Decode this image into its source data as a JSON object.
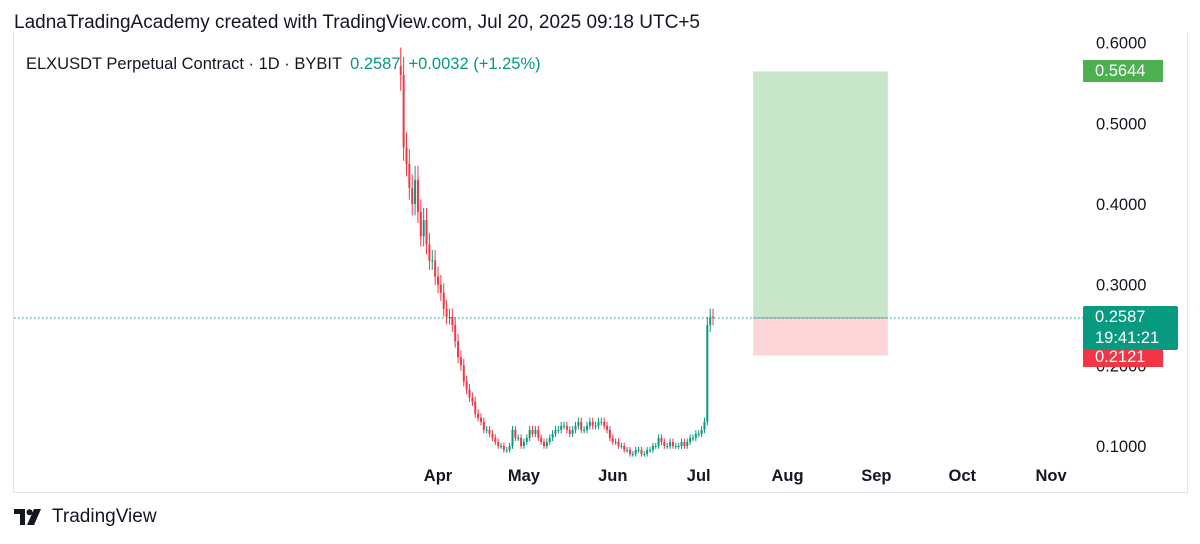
{
  "header": {
    "attribution": "LadnaTradingAcademy created with TradingView.com, Jul 20, 2025 09:18 UTC+5"
  },
  "legend": {
    "symbol": "ELXUSDT Perpetual Contract · 1D · BYBIT",
    "last": "0.2587",
    "change": "+0.0032 (+1.25%)"
  },
  "price_tags": {
    "take_profit": "0.5644",
    "last_price": "0.2587",
    "countdown": "19:41:21",
    "stop_loss": "0.2121"
  },
  "footer": {
    "brand": "TradingView"
  },
  "colors": {
    "up": "#089981",
    "down": "#f23645",
    "profit_zone": "#c8e6c9",
    "loss_zone": "#fcd5d9",
    "tp_tag": "#4caf50"
  },
  "chart_data": {
    "type": "candlestick",
    "title": "ELXUSDT Perpetual Contract · 1D · BYBIT",
    "y_ticks": [
      "0.6000",
      "0.5000",
      "0.4000",
      "0.3000",
      "0.2000",
      "0.1000"
    ],
    "x_ticks": [
      "Apr",
      "May",
      "Jun",
      "Jul",
      "Aug",
      "Sep",
      "Oct",
      "Nov"
    ],
    "ylim": [
      0.09,
      0.6
    ],
    "last_price": 0.2587,
    "position": {
      "entry": 0.2587,
      "take_profit": 0.5644,
      "stop_loss": 0.2121,
      "start_date": "2025-07-20",
      "end_date": "2025-09-05"
    },
    "series": [
      {
        "dates_start": "2025-03-19",
        "closes": [
          0.56,
          0.47,
          0.45,
          0.42,
          0.4,
          0.43,
          0.39,
          0.36,
          0.38,
          0.35,
          0.33,
          0.33,
          0.31,
          0.3,
          0.29,
          0.27,
          0.26,
          0.26,
          0.25,
          0.23,
          0.21,
          0.2,
          0.18,
          0.17,
          0.16,
          0.155,
          0.14,
          0.135,
          0.13,
          0.12,
          0.12,
          0.115,
          0.11,
          0.105,
          0.1,
          0.1,
          0.095,
          0.095,
          0.1,
          0.12,
          0.11,
          0.11,
          0.1,
          0.105,
          0.11,
          0.12,
          0.115,
          0.12,
          0.11,
          0.105,
          0.1,
          0.105,
          0.11,
          0.115,
          0.12,
          0.12,
          0.125,
          0.125,
          0.12,
          0.115,
          0.12,
          0.125,
          0.13,
          0.12,
          0.12,
          0.125,
          0.13,
          0.125,
          0.125,
          0.13,
          0.13,
          0.125,
          0.12,
          0.11,
          0.105,
          0.105,
          0.1,
          0.1,
          0.095,
          0.095,
          0.09,
          0.09,
          0.095,
          0.095,
          0.09,
          0.09,
          0.095,
          0.095,
          0.1,
          0.1,
          0.11,
          0.105,
          0.1,
          0.1,
          0.105,
          0.1,
          0.1,
          0.1,
          0.105,
          0.1,
          0.105,
          0.11,
          0.11,
          0.115,
          0.115,
          0.12,
          0.13,
          0.25,
          0.26,
          0.2587
        ]
      }
    ]
  }
}
